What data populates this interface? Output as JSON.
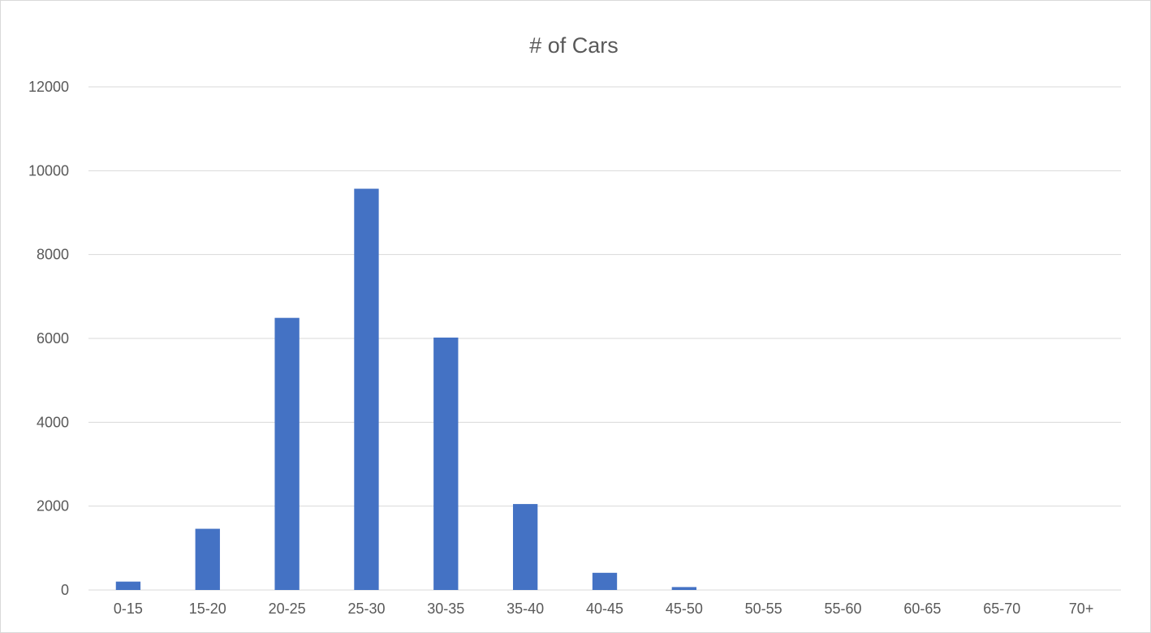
{
  "chart_data": {
    "type": "bar",
    "title": "# of Cars",
    "xlabel": "",
    "ylabel": "",
    "categories": [
      "0-15",
      "15-20",
      "20-25",
      "25-30",
      "30-35",
      "35-40",
      "40-45",
      "45-50",
      "50-55",
      "55-60",
      "60-65",
      "65-70",
      "70+"
    ],
    "series": [
      {
        "values": [
          200,
          1460,
          6490,
          9570,
          6020,
          2050,
          410,
          70,
          0,
          0,
          0,
          0,
          0
        ]
      }
    ],
    "ylim": [
      0,
      12000
    ],
    "yticks": [
      "0",
      "2000",
      "4000",
      "6000",
      "8000",
      "10000",
      "12000"
    ],
    "grid": true,
    "legend": "none",
    "colors": {
      "bar": "#4472c4",
      "grid": "#d9d9d9",
      "text": "#595959"
    }
  }
}
